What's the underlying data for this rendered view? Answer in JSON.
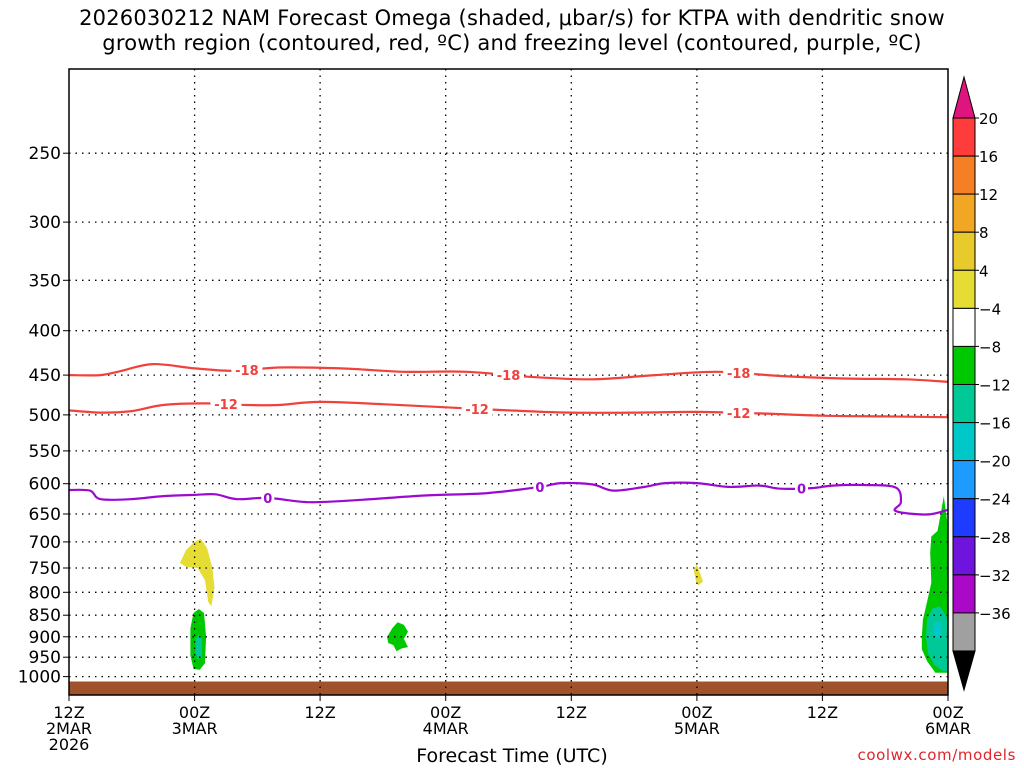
{
  "chart_data": {
    "type": "heatmap",
    "title_line1": "2026030212 NAM Forecast Omega (shaded, μbar/s) for KTPA with dendritic snow",
    "title_line2": "growth region (contoured, red, ºC) and freezing level (contoured, purple, ºC)",
    "xlabel": "Forecast Time (UTC)",
    "ylabel": "",
    "y_axis": {
      "type": "log-pressure",
      "range_hPa": [
        1050,
        200
      ],
      "ticks": [
        250,
        300,
        350,
        400,
        450,
        500,
        550,
        600,
        650,
        700,
        750,
        800,
        850,
        900,
        950,
        1000
      ]
    },
    "x_axis": {
      "range_hours": [
        0,
        84
      ],
      "ticks": [
        {
          "hour": 0,
          "labels": [
            "12Z",
            "2MAR",
            "2026"
          ]
        },
        {
          "hour": 12,
          "labels": [
            "00Z",
            "3MAR"
          ]
        },
        {
          "hour": 24,
          "labels": [
            "12Z"
          ]
        },
        {
          "hour": 36,
          "labels": [
            "00Z",
            "4MAR"
          ]
        },
        {
          "hour": 48,
          "labels": [
            "12Z"
          ]
        },
        {
          "hour": 60,
          "labels": [
            "00Z",
            "5MAR"
          ]
        },
        {
          "hour": 72,
          "labels": [
            "12Z"
          ]
        },
        {
          "hour": 84,
          "labels": [
            "00Z",
            "6MAR"
          ]
        }
      ]
    },
    "contours": [
      {
        "name": "-18C isotherm",
        "color": "#f0413c",
        "label": "-18",
        "label_hours": [
          17,
          42,
          64
        ],
        "points": [
          [
            0,
            450
          ],
          [
            3,
            450
          ],
          [
            5,
            445
          ],
          [
            8,
            437
          ],
          [
            12,
            442
          ],
          [
            16,
            445
          ],
          [
            20,
            441
          ],
          [
            26,
            442
          ],
          [
            32,
            446
          ],
          [
            38,
            446
          ],
          [
            44,
            452
          ],
          [
            50,
            455
          ],
          [
            56,
            450
          ],
          [
            62,
            446
          ],
          [
            68,
            451
          ],
          [
            74,
            454
          ],
          [
            80,
            455
          ],
          [
            84,
            458
          ]
        ]
      },
      {
        "name": "-12C isotherm",
        "color": "#f0413c",
        "label": "-12",
        "label_hours": [
          15,
          39,
          64
        ],
        "points": [
          [
            0,
            494
          ],
          [
            3,
            497
          ],
          [
            6,
            495
          ],
          [
            9,
            487
          ],
          [
            13,
            485
          ],
          [
            17,
            487
          ],
          [
            20,
            487
          ],
          [
            24,
            483
          ],
          [
            30,
            486
          ],
          [
            36,
            490
          ],
          [
            42,
            494
          ],
          [
            48,
            497
          ],
          [
            54,
            497
          ],
          [
            60,
            496
          ],
          [
            66,
            498
          ],
          [
            72,
            501
          ],
          [
            78,
            502
          ],
          [
            84,
            503
          ]
        ]
      },
      {
        "name": "0C freezing level",
        "color": "#9b0ad0",
        "label": "0",
        "label_hours": [
          19,
          45,
          70
        ],
        "points": [
          [
            0,
            610
          ],
          [
            2,
            611
          ],
          [
            3,
            625
          ],
          [
            6,
            625
          ],
          [
            9,
            620
          ],
          [
            12,
            618
          ],
          [
            14,
            617
          ],
          [
            16,
            625
          ],
          [
            19,
            623
          ],
          [
            23,
            630
          ],
          [
            28,
            626
          ],
          [
            34,
            619
          ],
          [
            40,
            615
          ],
          [
            45,
            605
          ],
          [
            47,
            599
          ],
          [
            50,
            601
          ],
          [
            52,
            611
          ],
          [
            55,
            605
          ],
          [
            57,
            599
          ],
          [
            60,
            599
          ],
          [
            63,
            605
          ],
          [
            66,
            603
          ],
          [
            68,
            608
          ],
          [
            71,
            607
          ],
          [
            73,
            603
          ],
          [
            76,
            602
          ],
          [
            79,
            606
          ],
          [
            79.5,
            630
          ],
          [
            79,
            645
          ],
          [
            82,
            651
          ],
          [
            84,
            643
          ]
        ]
      }
    ],
    "shaded_regions": [
      {
        "value_range": [
          4,
          8
        ],
        "color": "#e5dc34",
        "location": "hour 10.5-13.5, 690-830 hPa"
      },
      {
        "value_range": [
          -8,
          -4
        ],
        "color": "#00c800",
        "location": "hour 11.5-13, 840-980 hPa"
      },
      {
        "value_range": [
          -12,
          -8
        ],
        "color": "#00c896",
        "location": "hour 12.3, 900-950 hPa"
      },
      {
        "value_range": [
          -8,
          -4
        ],
        "color": "#00c800",
        "location": "hour 30.5-32.5, 870-930 hPa"
      },
      {
        "value_range": [
          4,
          8
        ],
        "color": "#e5dc34",
        "location": "hour 59.8-60.4, 745-785 hPa"
      },
      {
        "value_range": [
          -8,
          -4
        ],
        "color": "#00c800",
        "location": "hour 81.5-84, 620-980 hPa"
      },
      {
        "value_range": [
          -12,
          -8
        ],
        "color": "#00c896",
        "location": "hour 82-84, 830-980 hPa"
      },
      {
        "value_range": [
          -16,
          -12
        ],
        "color": "#00c8c8",
        "location": "hour 82.7-83.3, 860-900 hPa"
      }
    ],
    "ground_level_hPa": 1013,
    "colorbar": {
      "labels": [
        "20",
        "16",
        "12",
        "8",
        "4",
        "−4",
        "−8",
        "−12",
        "−16",
        "−20",
        "−24",
        "−28",
        "−32",
        "−36"
      ],
      "colors": [
        "#ff3c3c",
        "#f57f24",
        "#f1a724",
        "#e8ca2c",
        "#e5dc34",
        "#ffffff",
        "#00c800",
        "#00c896",
        "#00c8c8",
        "#1e9bff",
        "#1e3cff",
        "#6e14dc",
        "#aa0ac8",
        "#a0a0a0"
      ],
      "top_arrow_color": "#e0147e",
      "bottom_arrow_color": "#000000"
    }
  },
  "credit": "coolwx.com/models"
}
